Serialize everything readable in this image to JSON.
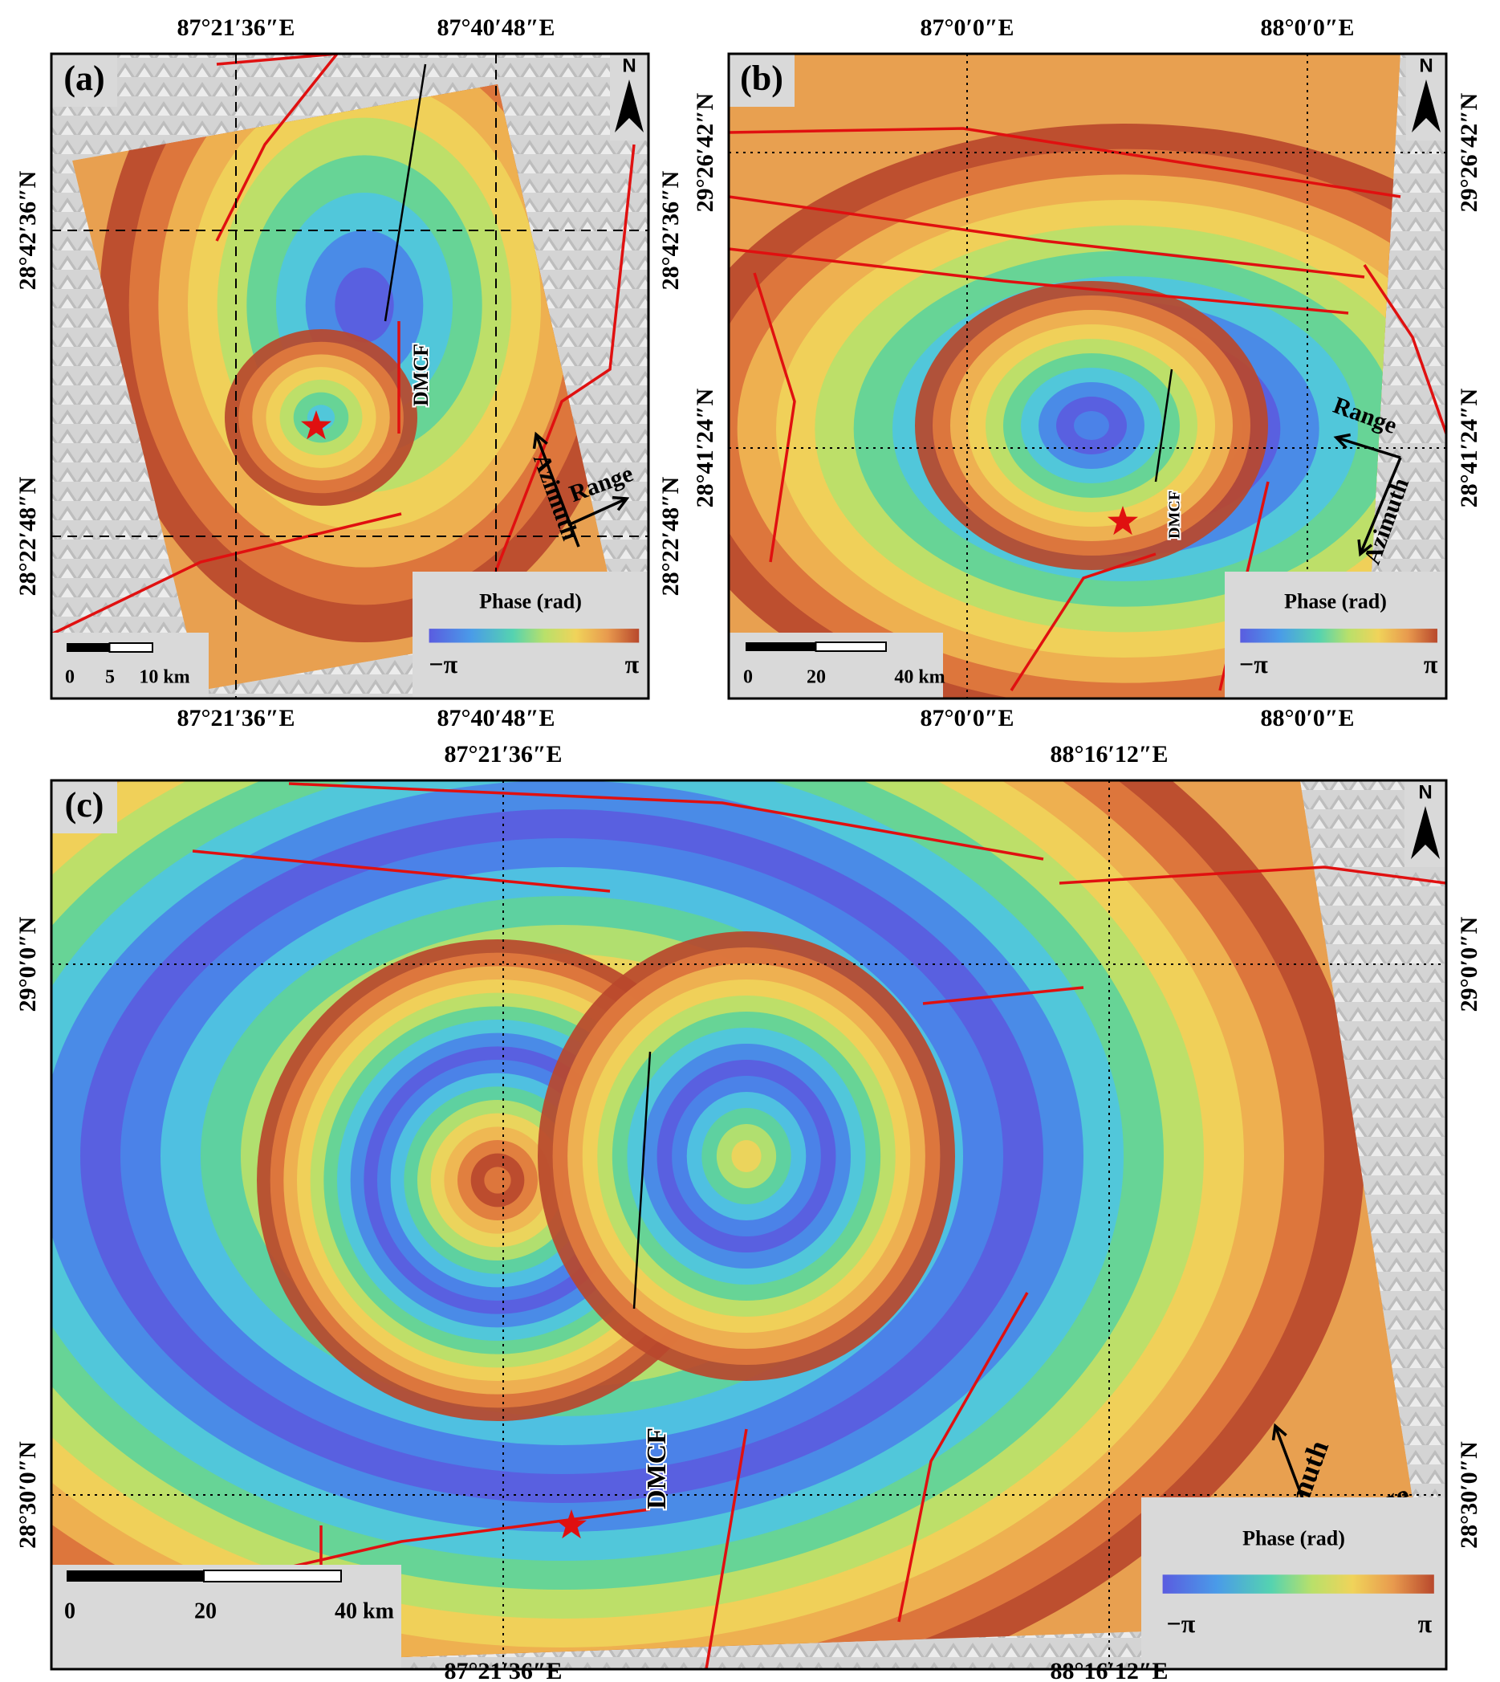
{
  "panels": [
    {
      "label": "(a)",
      "lon_ticks": [
        "87°21′36″E",
        "87°40′48″E"
      ],
      "lat_ticks": [
        "28°42′36″N",
        "28°22′48″N"
      ],
      "north": "N",
      "fault": "DMCF",
      "range": "Range",
      "azimuth": "Azimuth",
      "legend_title": "Phase (rad)",
      "legend_min": "−π",
      "legend_max": "π",
      "scalebar": [
        "0",
        "5",
        "10 km"
      ]
    },
    {
      "label": "(b)",
      "lon_ticks": [
        "87°0′0″E",
        "88°0′0″E"
      ],
      "lat_ticks": [
        "29°26′42″N",
        "28°41′24″N"
      ],
      "north": "N",
      "fault": "DMCF",
      "range": "Range",
      "azimuth": "Azimuth",
      "legend_title": "Phase (rad)",
      "legend_min": "−π",
      "legend_max": "π",
      "scalebar": [
        "0",
        "20",
        "40 km"
      ]
    },
    {
      "label": "(c)",
      "lon_ticks": [
        "87°21′36″E",
        "88°16′12″E"
      ],
      "lat_ticks": [
        "29°0′0″N",
        "28°30′0″N"
      ],
      "north": "N",
      "fault": "DMCF",
      "range": "Range",
      "azimuth": "Azimuth",
      "legend_title": "Phase (rad)",
      "legend_min": "−π",
      "legend_max": "π",
      "scalebar": [
        "0",
        "20",
        "40 km"
      ]
    }
  ]
}
